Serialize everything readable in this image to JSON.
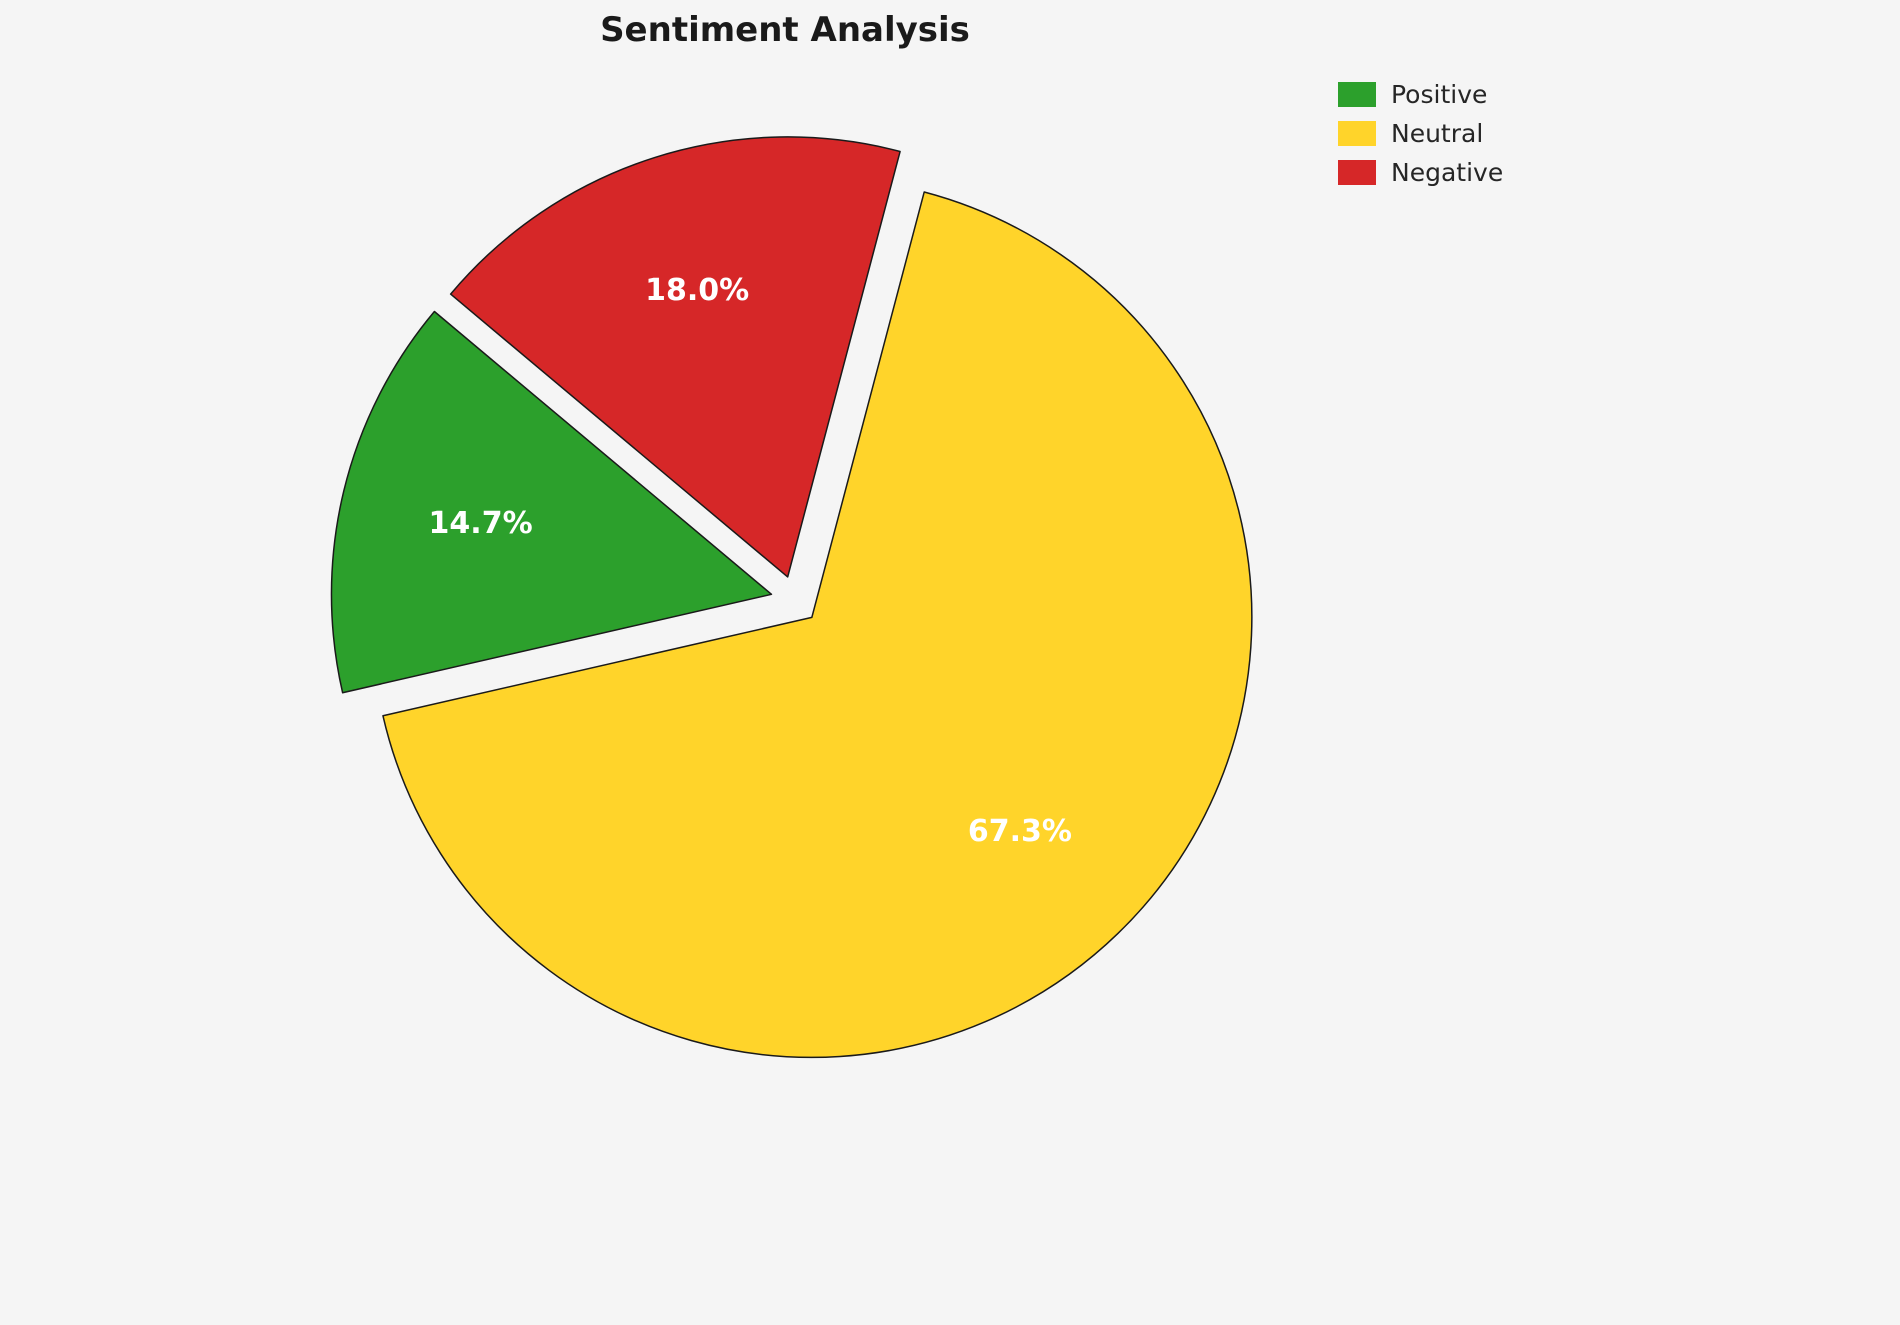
{
  "page": {
    "background": "#f5f5f5"
  },
  "chart_data": {
    "type": "pie",
    "title": "Sentiment Analysis",
    "slices": [
      {
        "label": "Positive",
        "value": 14.7,
        "display": "14.7%",
        "color": "#2ca02c"
      },
      {
        "label": "Neutral",
        "value": 67.3,
        "display": "67.3%",
        "color": "#ffd42a"
      },
      {
        "label": "Negative",
        "value": 18.0,
        "display": "18.0%",
        "color": "#d62728"
      }
    ],
    "start_angle_deg": 140,
    "direction": "counterclockwise",
    "explode": 0.055,
    "label_distance": 0.68,
    "edge_color": "#1a1a1a",
    "pct_label_color": "#ffffff",
    "legend": {
      "position": "upper right",
      "items": [
        "Positive",
        "Neutral",
        "Negative"
      ]
    }
  }
}
